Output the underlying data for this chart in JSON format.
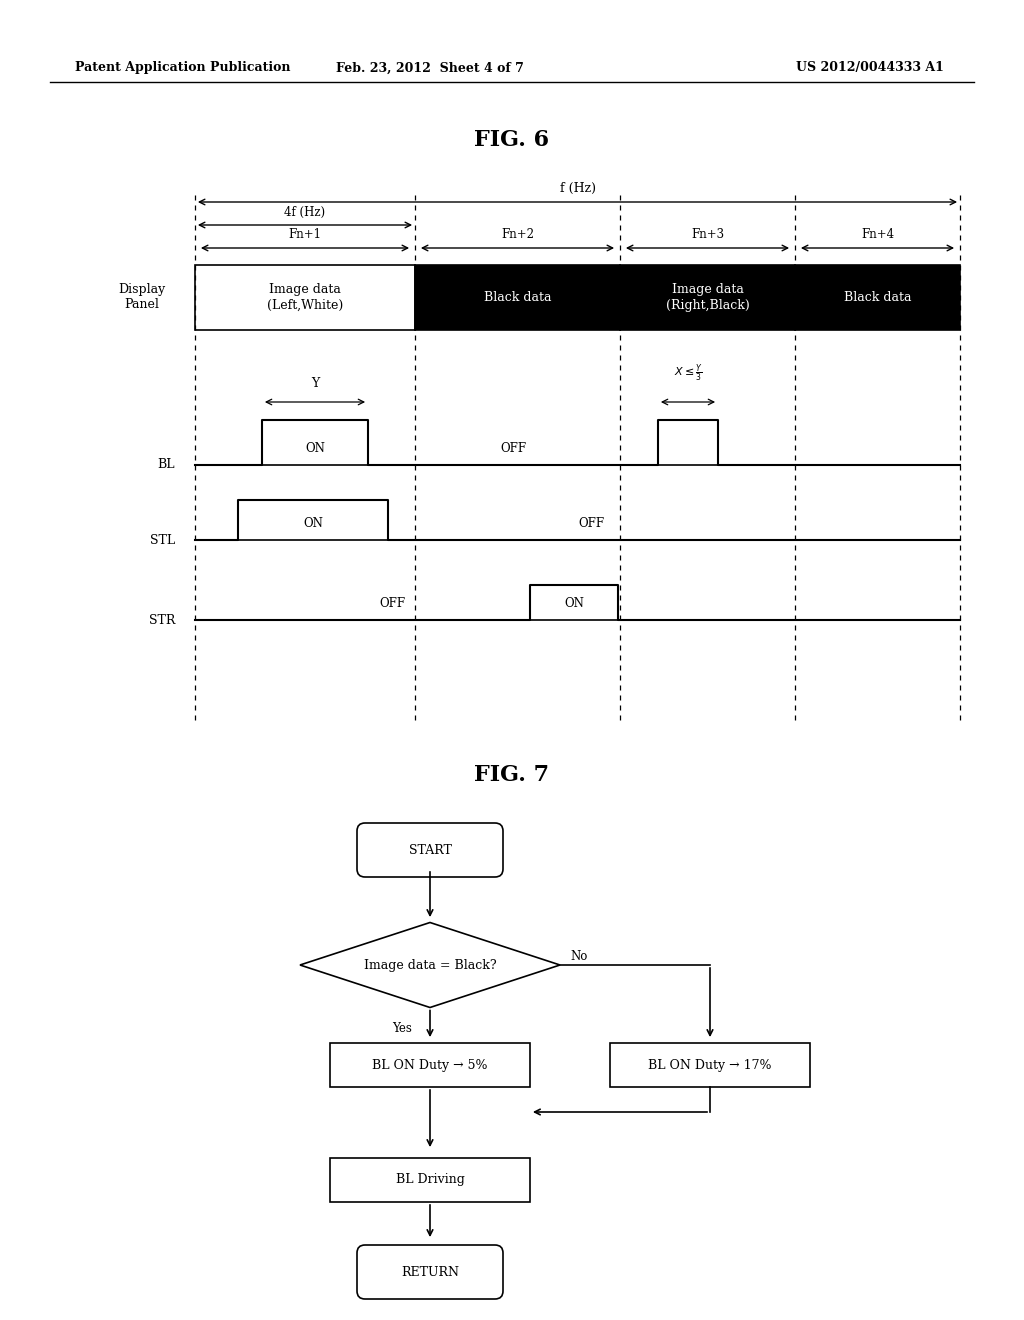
{
  "header_left": "Patent Application Publication",
  "header_mid": "Feb. 23, 2012  Sheet 4 of 7",
  "header_right": "US 2012/0044333 A1",
  "fig6_title": "FIG. 6",
  "fig7_title": "FIG. 7",
  "bg_color": "#ffffff",
  "text_color": "#000000",
  "fig6": {
    "frame_labels": [
      "Fn+1",
      "Fn+2",
      "Fn+3",
      "Fn+4"
    ],
    "display_labels": [
      "Image data\n(Left,White)",
      "Black data",
      "Image data\n(Right,Black)",
      "Black data"
    ],
    "display_colors": [
      "#ffffff",
      "#000000",
      "#000000",
      "#000000"
    ],
    "display_text_colors": [
      "#000000",
      "#ffffff",
      "#ffffff",
      "#ffffff"
    ]
  },
  "fig7": {
    "box1_label": "BL ON Duty → 5%",
    "box2_label": "BL ON Duty → 17%",
    "box3_label": "BL Driving"
  }
}
